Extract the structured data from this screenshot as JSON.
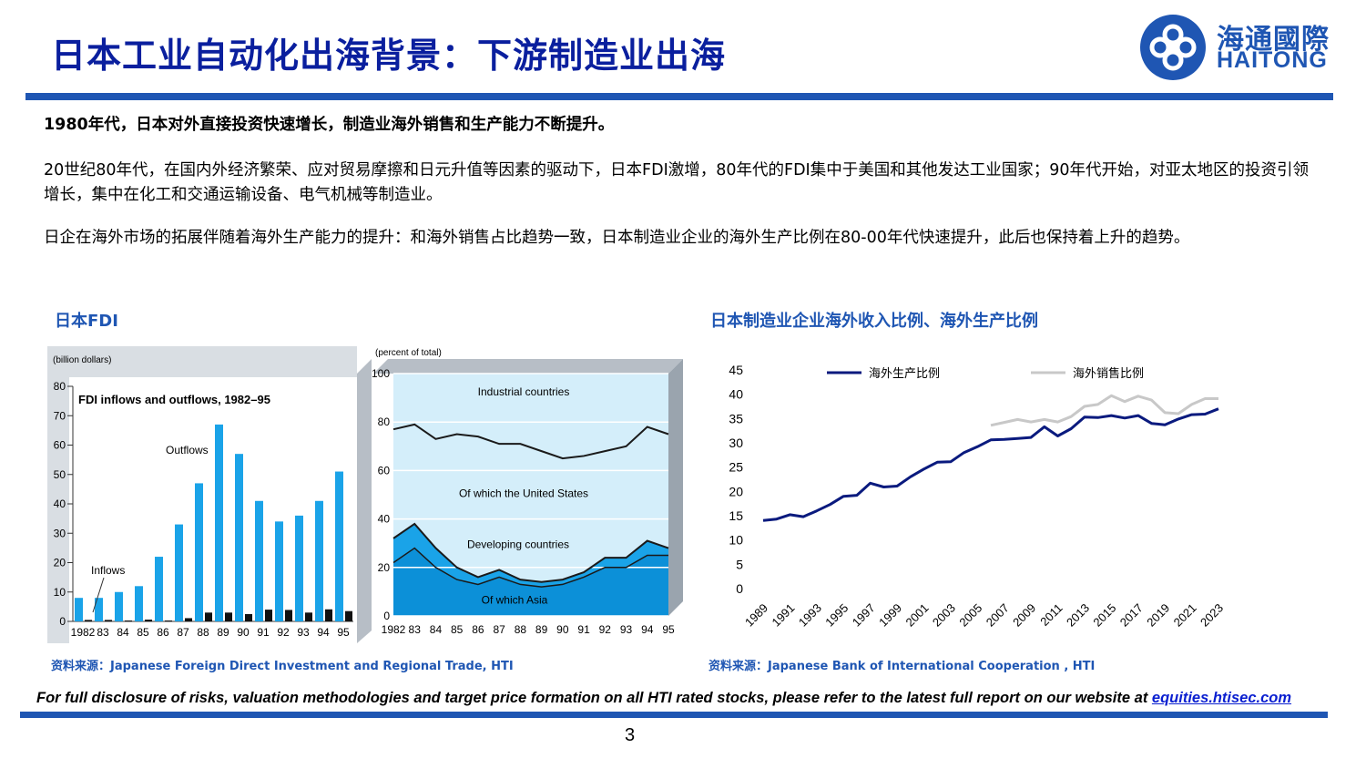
{
  "header": {
    "title": "日本工业自动化出海背景：下游制造业出海",
    "logo_cn": "海通國際",
    "logo_en": "HAITONG"
  },
  "body": {
    "headline": "1980年代，日本对外直接投资快速增长，制造业海外销售和生产能力不断提升。",
    "para1": "20世纪80年代，在国内外经济繁荣、应对贸易摩擦和日元升值等因素的驱动下，日本FDI激增，80年代的FDI集中于美国和其他发达工业国家；90年代开始，对亚太地区的投资引领增长，集中在化工和交通运输设备、电气机械等制造业。",
    "para2": "日企在海外市场的拓展伴随着海外生产能力的提升：和海外销售占比趋势一致，日本制造业企业的海外生产比例在80-00年代快速提升，此后也保持着上升的趋势。"
  },
  "left_chart_title": "日本FDI",
  "right_chart_title": "日本制造业企业海外收入比例、海外生产比例",
  "source_left": "资料来源：Japanese Foreign Direct Investment and Regional Trade, HTI",
  "source_right": "资料来源：Japanese Bank of International Cooperation , HTI",
  "footer": {
    "disclaimer": "For full disclosure of risks, valuation methodologies and target price formation on all HTI rated stocks, please refer to the latest full report on our website at ",
    "link": "equities.htisec.com",
    "page_number": "3"
  },
  "colors": {
    "brand_blue": "#1f56b3",
    "title_blue": "#0a1f9e",
    "bar_blue": "#1aa3e8",
    "area_blue": "#1aa3e8",
    "navy": "#0a1a7e",
    "grey": "#c8c8c8"
  },
  "chart_data": [
    {
      "type": "bar",
      "title": "FDI inflows and outflows, 1982–95",
      "ylabel": "(billion dollars)",
      "ylim": [
        0,
        80
      ],
      "yticks": [
        "0",
        "10",
        "20",
        "30",
        "40",
        "50",
        "60",
        "70",
        "80"
      ],
      "categories": [
        "1982",
        "83",
        "84",
        "85",
        "86",
        "87",
        "88",
        "89",
        "90",
        "91",
        "92",
        "93",
        "94",
        "95"
      ],
      "series": [
        {
          "name": "Outflows",
          "values": [
            8,
            8,
            10,
            12,
            22,
            33,
            47,
            67,
            57,
            41,
            34,
            36,
            41,
            51
          ]
        },
        {
          "name": "Inflows",
          "values": [
            0.5,
            0.5,
            0.3,
            0.6,
            0.3,
            1.1,
            3,
            3,
            2.5,
            4,
            3.9,
            3,
            4.1,
            3.5
          ]
        }
      ],
      "annotations": [
        "Outflows",
        "Inflows"
      ]
    },
    {
      "type": "area",
      "ylabel": "(percent of total)",
      "ylim": [
        0,
        100
      ],
      "yticks": [
        "0",
        "20",
        "40",
        "60",
        "80",
        "100"
      ],
      "categories": [
        "1982",
        "83",
        "84",
        "85",
        "86",
        "87",
        "88",
        "89",
        "90",
        "91",
        "92",
        "93",
        "94",
        "95"
      ],
      "series": [
        {
          "name": "Industrial countries",
          "values": [
            77,
            79,
            73,
            75,
            74,
            71,
            71,
            68,
            65,
            66,
            68,
            70,
            78,
            75
          ]
        },
        {
          "name": "Developing countries",
          "values": [
            32,
            38,
            28,
            20,
            16,
            19,
            15,
            14,
            15,
            18,
            24,
            24,
            31,
            28
          ]
        },
        {
          "name": "Of which Asia",
          "values": [
            22,
            28,
            20,
            15,
            13,
            16,
            13,
            12,
            13,
            16,
            20,
            20,
            25,
            25
          ]
        }
      ],
      "annotations": [
        "Industrial countries",
        "Of which the United States",
        "Developing countries",
        "Of which Asia"
      ]
    },
    {
      "type": "line",
      "x": [
        "1989",
        "1990",
        "1991",
        "1992",
        "1993",
        "1994",
        "1995",
        "1996",
        "1997",
        "1998",
        "1999",
        "2000",
        "2001",
        "2002",
        "2003",
        "2004",
        "2005",
        "2006",
        "2007",
        "2008",
        "2009",
        "2010",
        "2011",
        "2012",
        "2013",
        "2014",
        "2015",
        "2016",
        "2017",
        "2018",
        "2019",
        "2020",
        "2021",
        "2022",
        "2023"
      ],
      "xticks": [
        "1989",
        "1991",
        "1993",
        "1995",
        "1997",
        "1999",
        "2001",
        "2003",
        "2005",
        "2007",
        "2009",
        "2011",
        "2013",
        "2015",
        "2017",
        "2019",
        "2021",
        "2023"
      ],
      "ylim": [
        0,
        45
      ],
      "yticks": [
        "0",
        "5",
        "10",
        "15",
        "20",
        "25",
        "30",
        "35",
        "40",
        "45"
      ],
      "series": [
        {
          "name": "海外生产比例",
          "color": "#0a1a7e",
          "values": [
            14,
            14.3,
            15.2,
            14.8,
            16,
            17.3,
            19,
            19.2,
            21.7,
            20.9,
            21.1,
            23,
            24.6,
            26,
            26.1,
            28,
            29.2,
            30.6,
            30.7,
            30.9,
            31.1,
            33.3,
            31.4,
            32.9,
            35.3,
            35.2,
            35.6,
            35.1,
            35.6,
            34,
            33.7,
            34.9,
            35.8,
            35.9,
            37
          ]
        },
        {
          "name": "海外销售比例",
          "color": "#c8c8c8",
          "values": [
            null,
            null,
            null,
            null,
            null,
            null,
            null,
            null,
            null,
            null,
            null,
            null,
            null,
            null,
            null,
            null,
            null,
            33.6,
            34.2,
            34.8,
            34.3,
            34.8,
            34.3,
            35.4,
            37.5,
            37.9,
            39.7,
            38.5,
            39.6,
            38.8,
            36.2,
            36,
            37.9,
            39.1,
            39.1
          ]
        }
      ],
      "legend": "top"
    }
  ]
}
